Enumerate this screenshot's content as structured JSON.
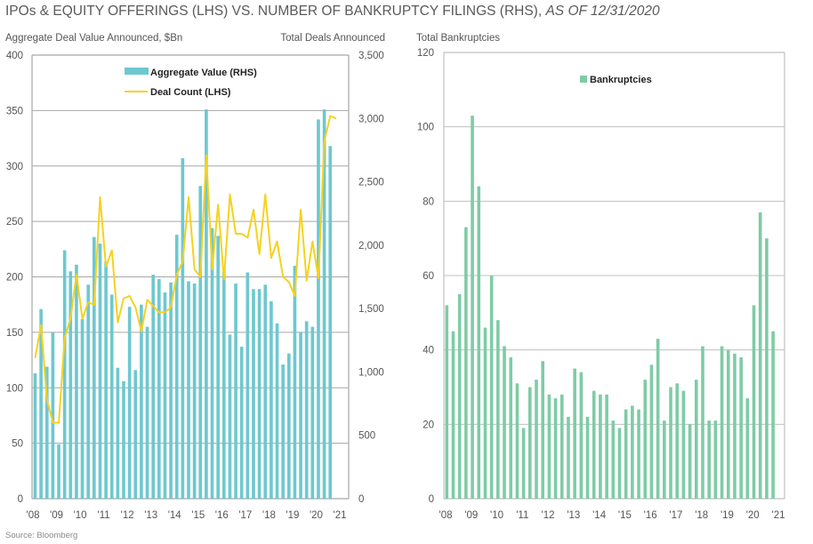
{
  "header": {
    "title_main": "IPOs & EQUITY OFFERINGS (LHS) VS. NUMBER OF BANKRUPTCY FILINGS (RHS),",
    "title_italic": "AS OF 12/31/2020"
  },
  "source": "Source: Bloomberg",
  "colors": {
    "aggregate_bar": "#6ec8cf",
    "deal_line": "#f5d21f",
    "bankruptcy_bar": "#7dcca5",
    "grid": "#a6a6a6",
    "axis": "#a6a6a6"
  },
  "chart_data": [
    {
      "type": "bar+line",
      "title": "",
      "ylabel_left": "Aggregate Deal Value Announced, $Bn",
      "ylabel_right": "Total Deals Announced",
      "ylim_left": [
        0,
        400
      ],
      "ylim_right": [
        0,
        3500
      ],
      "yticks_left": [
        "0",
        "50",
        "100",
        "150",
        "200",
        "250",
        "300",
        "350",
        "400"
      ],
      "yticks_right": [
        "0",
        "500",
        "1,000",
        "1,500",
        "2,000",
        "2,500",
        "3,000",
        "3,500"
      ],
      "xticks": [
        "'08",
        "'09",
        "'10",
        "'11",
        "'12",
        "'13",
        "'14",
        "'15",
        "'16",
        "'17",
        "'18",
        "'19",
        "'20",
        "'21"
      ],
      "grid": true,
      "legend_position": "top-center",
      "frequency": "quarterly, 2008Q1-2020Q4",
      "series": [
        {
          "name": "Aggregate Value (RHS)",
          "kind": "bar",
          "axis": "left",
          "values": [
            113,
            171,
            119,
            150,
            49,
            224,
            205,
            211,
            162,
            193,
            236,
            230,
            214,
            184,
            118,
            106,
            173,
            116,
            175,
            155,
            202,
            198,
            186,
            195,
            238,
            307,
            196,
            194,
            282,
            351,
            244,
            237,
            207,
            148,
            194,
            137,
            204,
            189,
            189,
            193,
            178,
            158,
            121,
            131,
            210,
            150,
            160,
            155,
            342,
            351,
            318,
            0
          ]
        },
        {
          "name": "Deal Count (LHS)",
          "kind": "line",
          "axis": "right",
          "values": [
            1110,
            1370,
            780,
            600,
            600,
            1270,
            1420,
            1770,
            1420,
            1550,
            1530,
            2380,
            1830,
            1960,
            1390,
            1580,
            1600,
            1510,
            1320,
            1570,
            1520,
            1470,
            1470,
            1510,
            1770,
            1870,
            2380,
            1810,
            1750,
            2710,
            1810,
            2320,
            1730,
            2400,
            2090,
            2090,
            2060,
            2280,
            1930,
            2400,
            1900,
            2030,
            1750,
            1710,
            1600,
            2280,
            1720,
            2030,
            1740,
            2820,
            3020,
            3000
          ]
        }
      ]
    },
    {
      "type": "bar",
      "title": "",
      "ylabel": "Total Bankruptcies",
      "ylim": [
        0,
        120
      ],
      "yticks": [
        "0",
        "20",
        "40",
        "60",
        "80",
        "100",
        "120"
      ],
      "xticks": [
        "'08",
        "'09",
        "'10",
        "'11",
        "'12",
        "'13",
        "'14",
        "'15",
        "'16",
        "'17",
        "'18",
        "'19",
        "'20",
        "'21"
      ],
      "grid": true,
      "legend_position": "top-center",
      "frequency": "quarterly, 2008Q1-2020Q4",
      "series": [
        {
          "name": "Bankruptcies",
          "values": [
            52,
            45,
            55,
            73,
            103,
            84,
            46,
            60,
            48,
            41,
            38,
            31,
            19,
            30,
            32,
            37,
            28,
            27,
            28,
            22,
            35,
            34,
            22,
            29,
            28,
            28,
            21,
            19,
            24,
            25,
            24,
            32,
            36,
            43,
            21,
            30,
            31,
            29,
            20,
            32,
            41,
            21,
            21,
            41,
            40,
            39,
            38,
            27,
            52,
            77,
            70,
            45
          ]
        }
      ]
    }
  ]
}
